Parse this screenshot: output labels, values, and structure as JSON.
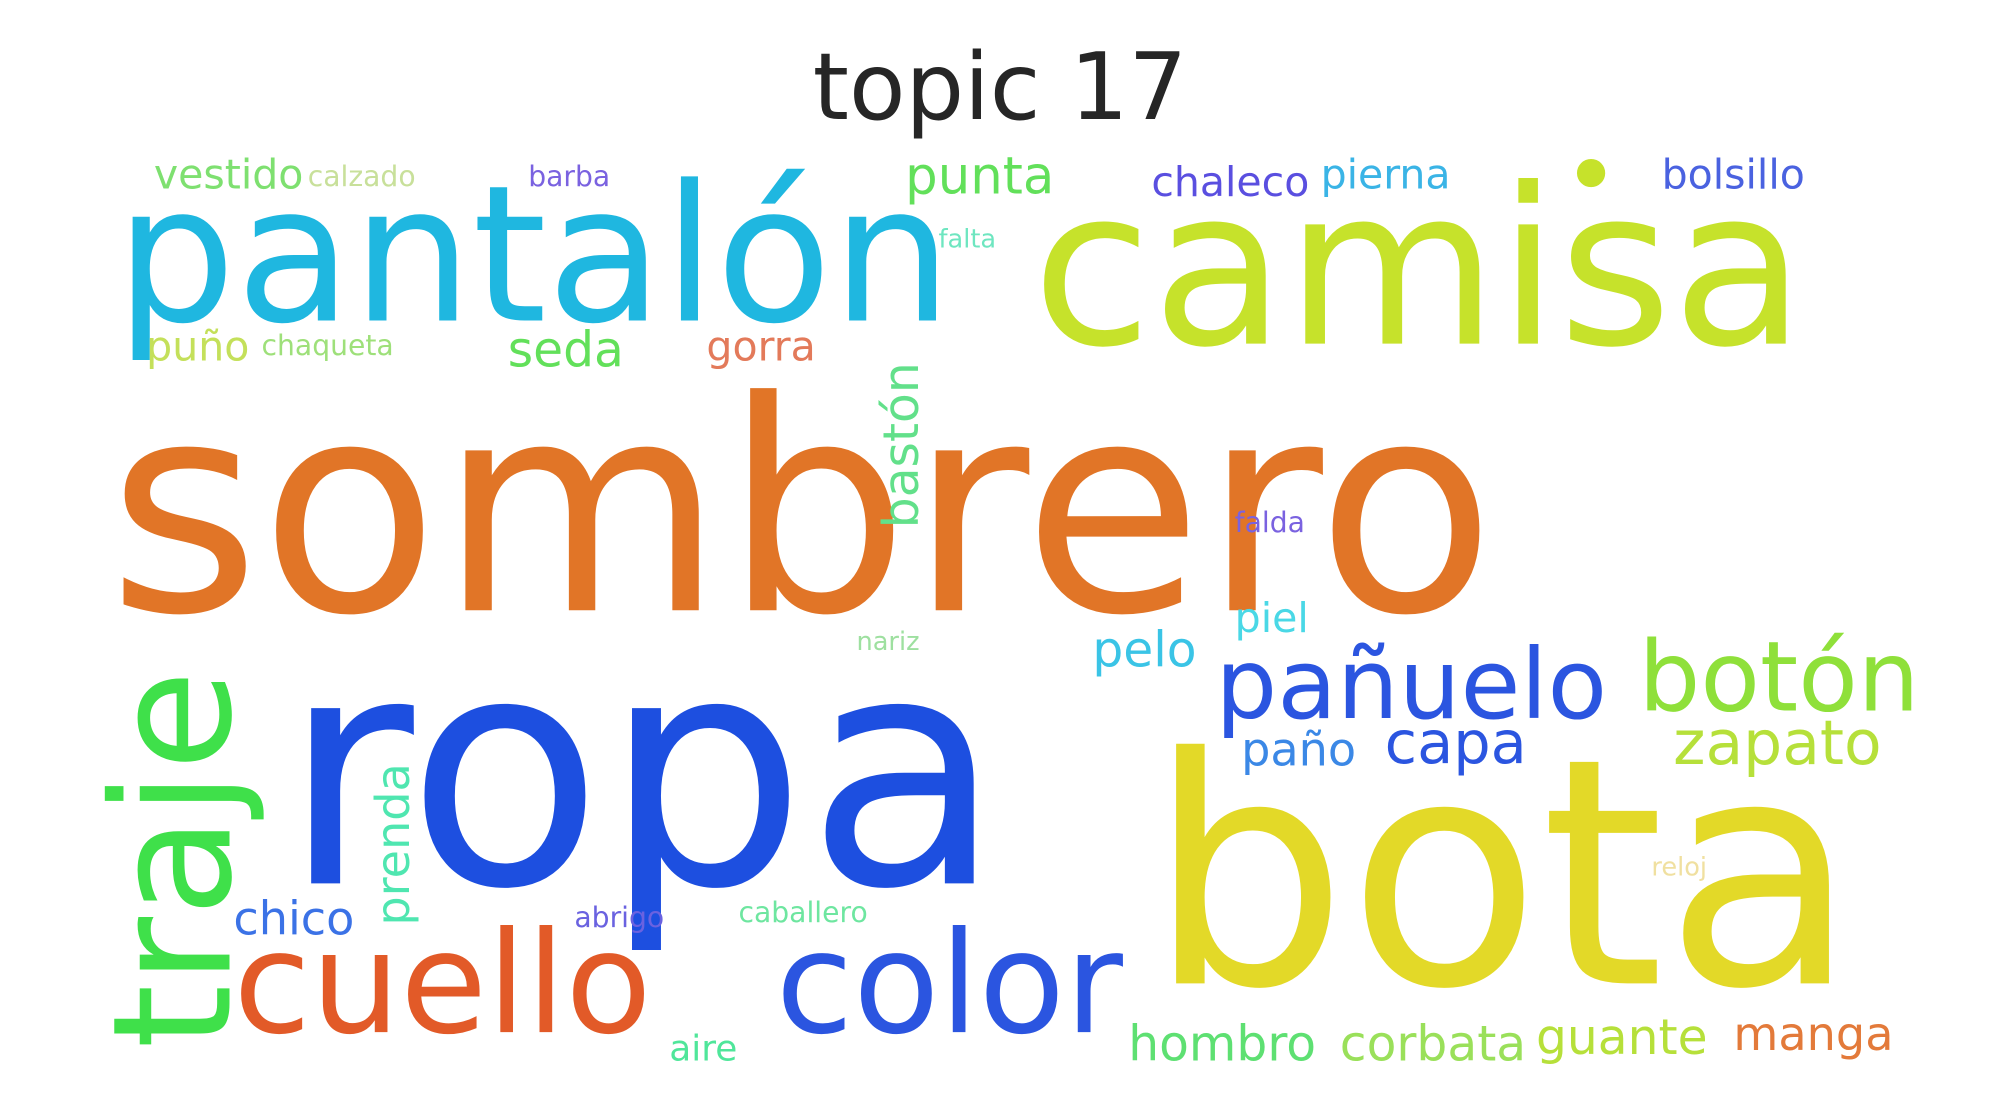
{
  "title": "topic 17",
  "colors": {
    "orange": "#e17527",
    "lime": "#c6e22b",
    "blue": "#1d4fe0",
    "yellow": "#e3d928",
    "cyan": "#1fb7e0",
    "green": "#3fe04a",
    "orange_red": "#e25a28",
    "royal_blue": "#2b55e0",
    "light_green": "#8fe03a",
    "pale_green": "#8fe68a",
    "purple": "#6b54e0"
  },
  "words": [
    {
      "text": "sombrero",
      "weight": 100,
      "orientation": "horizontal",
      "color": "#e17527"
    },
    {
      "text": "ropa",
      "weight": 92,
      "orientation": "horizontal",
      "color": "#1d4fe0"
    },
    {
      "text": "bota",
      "weight": 90,
      "orientation": "horizontal",
      "color": "#e3d928"
    },
    {
      "text": "camisa",
      "weight": 74,
      "orientation": "horizontal",
      "color": "#c6e22b"
    },
    {
      "text": "pantalón",
      "weight": 68,
      "orientation": "horizontal",
      "color": "#1fb7e0"
    },
    {
      "text": "traje",
      "weight": 58,
      "orientation": "vertical",
      "color": "#3fe04a"
    },
    {
      "text": "cuello",
      "weight": 54,
      "orientation": "horizontal",
      "color": "#e25a28"
    },
    {
      "text": "color",
      "weight": 54,
      "orientation": "horizontal",
      "color": "#2b55e0"
    },
    {
      "text": "pañuelo",
      "weight": 36,
      "orientation": "horizontal",
      "color": "#2b55e0"
    },
    {
      "text": "botón",
      "weight": 36,
      "orientation": "horizontal",
      "color": "#8fe03a"
    },
    {
      "text": "zapato",
      "weight": 24,
      "orientation": "horizontal",
      "color": "#b6e03a"
    },
    {
      "text": "capa",
      "weight": 22,
      "orientation": "horizontal",
      "color": "#2b55e0"
    },
    {
      "text": "punta",
      "weight": 20,
      "orientation": "horizontal",
      "color": "#62e05a"
    },
    {
      "text": "seda",
      "weight": 18,
      "orientation": "horizontal",
      "color": "#62e05a"
    },
    {
      "text": "bastón",
      "weight": 18,
      "orientation": "vertical",
      "color": "#62e08a"
    },
    {
      "text": "prenda",
      "weight": 18,
      "orientation": "vertical",
      "color": "#4fe6b0"
    },
    {
      "text": "pelo",
      "weight": 18,
      "orientation": "horizontal",
      "color": "#3ac4e6"
    },
    {
      "text": "hombro",
      "weight": 18,
      "orientation": "horizontal",
      "color": "#5ee072"
    },
    {
      "text": "corbata",
      "weight": 18,
      "orientation": "horizontal",
      "color": "#9ae05a"
    },
    {
      "text": "guante",
      "weight": 18,
      "orientation": "horizontal",
      "color": "#b6e03a"
    },
    {
      "text": "manga",
      "weight": 18,
      "orientation": "horizontal",
      "color": "#e37a3a"
    },
    {
      "text": "chico",
      "weight": 18,
      "orientation": "horizontal",
      "color": "#3b72e6"
    },
    {
      "text": "paño",
      "weight": 18,
      "orientation": "horizontal",
      "color": "#3b88e6"
    },
    {
      "text": "vestido",
      "weight": 16,
      "orientation": "horizontal",
      "color": "#7ee070"
    },
    {
      "text": "chaleco",
      "weight": 16,
      "orientation": "horizontal",
      "color": "#5a4fe0"
    },
    {
      "text": "pierna",
      "weight": 16,
      "orientation": "horizontal",
      "color": "#3ab4e6"
    },
    {
      "text": "bolsillo",
      "weight": 16,
      "orientation": "horizontal",
      "color": "#4a62e0"
    },
    {
      "text": "gorra",
      "weight": 16,
      "orientation": "horizontal",
      "color": "#e37a5a"
    },
    {
      "text": "puño",
      "weight": 16,
      "orientation": "horizontal",
      "color": "#c4e05a"
    },
    {
      "text": "piel",
      "weight": 16,
      "orientation": "horizontal",
      "color": "#4ad8e6"
    },
    {
      "text": "aire",
      "weight": 14,
      "orientation": "horizontal",
      "color": "#4fe69a"
    },
    {
      "text": "calzado",
      "weight": 10,
      "orientation": "horizontal",
      "color": "#c8e09a"
    },
    {
      "text": "barba",
      "weight": 10,
      "orientation": "horizontal",
      "color": "#7a62e0"
    },
    {
      "text": "falta",
      "weight": 10,
      "orientation": "horizontal",
      "color": "#6ee6c0"
    },
    {
      "text": "chaqueta",
      "weight": 10,
      "orientation": "horizontal",
      "color": "#9ee07a"
    },
    {
      "text": "falda",
      "weight": 10,
      "orientation": "horizontal",
      "color": "#7a62e0"
    },
    {
      "text": "nariz",
      "weight": 10,
      "orientation": "horizontal",
      "color": "#9ee0a0"
    },
    {
      "text": "abrigo",
      "weight": 10,
      "orientation": "horizontal",
      "color": "#6a62e0"
    },
    {
      "text": "caballero",
      "weight": 10,
      "orientation": "horizontal",
      "color": "#6ee6a0"
    },
    {
      "text": "reloj",
      "weight": 10,
      "orientation": "horizontal",
      "color": "#f0e0a0"
    }
  ]
}
